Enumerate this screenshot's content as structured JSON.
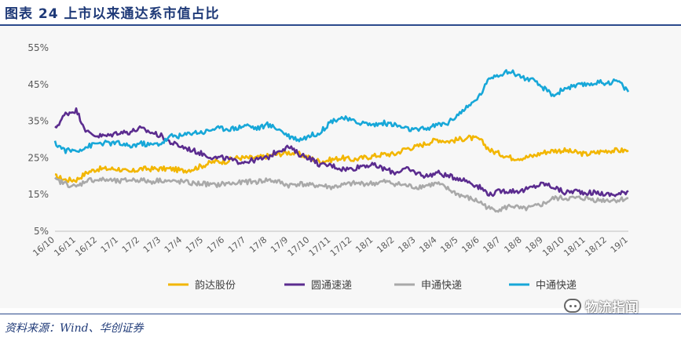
{
  "header": {
    "title": "图表 24    上市以来通达系市值占比"
  },
  "footer": {
    "source": "资料来源：Wind、华创证券"
  },
  "watermark": {
    "text": "物流指闻"
  },
  "colors": {
    "yunda": "#f2b600",
    "yuantong": "#5b2c8f",
    "shentong": "#a9a9a9",
    "zhongtong": "#17a7d8",
    "axis": "#595959",
    "title": "#1f3a78"
  },
  "chart_data": {
    "type": "line",
    "title": "上市以来通达系市值占比",
    "xlabel": "",
    "ylabel": "",
    "ylim": [
      5,
      55
    ],
    "yticks": [
      5,
      15,
      25,
      35,
      45,
      55
    ],
    "yticklabels": [
      "5%",
      "15%",
      "25%",
      "35%",
      "45%",
      "55%"
    ],
    "xlim": [
      0,
      27
    ],
    "x_ticks": [
      0,
      1,
      2,
      3,
      4,
      5,
      6,
      7,
      8,
      9,
      10,
      11,
      12,
      13,
      14,
      15,
      16,
      17,
      18,
      19,
      20,
      21,
      22,
      23,
      24,
      25,
      26,
      27
    ],
    "categories": [
      "16/10",
      "16/11",
      "16/12",
      "17/1",
      "17/2",
      "17/3",
      "17/4",
      "17/5",
      "17/6",
      "17/7",
      "17/8",
      "17/9",
      "17/10",
      "17/11",
      "17/12",
      "18/1",
      "18/2",
      "18/3",
      "18/4",
      "18/5",
      "18/6",
      "18/7",
      "18/8",
      "18/9",
      "18/10",
      "18/11",
      "18/12",
      "19/1"
    ],
    "grid": false,
    "legend_position": "bottom",
    "x": [
      0,
      0.5,
      1,
      1.5,
      2,
      2.5,
      3,
      3.5,
      4,
      4.5,
      5,
      5.5,
      6,
      6.5,
      7,
      7.5,
      8,
      8.5,
      9,
      9.5,
      10,
      10.5,
      11,
      11.5,
      12,
      12.5,
      13,
      13.5,
      14,
      14.5,
      15,
      15.5,
      16,
      16.5,
      17,
      17.5,
      18,
      18.5,
      19,
      19.5,
      20,
      20.5,
      21,
      21.5,
      22,
      22.5,
      23,
      23.5,
      24,
      24.5,
      25,
      25.5,
      26,
      26.5,
      27
    ],
    "series": [
      {
        "name": "韵达股份",
        "color": "#f2b600",
        "values": [
          20,
          19,
          19,
          21,
          22,
          22,
          22,
          21,
          22,
          22,
          22,
          22,
          21.5,
          22,
          23,
          24,
          24,
          25,
          25,
          25,
          25.5,
          26,
          26.5,
          26,
          25,
          24,
          24.5,
          25,
          24.5,
          25,
          25.5,
          26,
          26,
          27.5,
          28,
          29,
          30,
          29.5,
          30,
          30.5,
          30,
          27,
          26,
          25,
          25,
          25.5,
          26.5,
          27,
          27,
          26.5,
          26,
          26.5,
          27,
          27,
          27
        ]
      },
      {
        "name": "圆通速递",
        "color": "#5b2c8f",
        "values": [
          33,
          37,
          38,
          32,
          31,
          31,
          32,
          32,
          33,
          32,
          31,
          29,
          28,
          27,
          26,
          25,
          25,
          24,
          24,
          24.5,
          25,
          27,
          28,
          26,
          25,
          23,
          23,
          22,
          22,
          23,
          23,
          22,
          21,
          22,
          21,
          20,
          21,
          20,
          19.5,
          18.5,
          17,
          15,
          16,
          16,
          16,
          17,
          18,
          17,
          15.5,
          16,
          15.5,
          15.5,
          15,
          15,
          16
        ]
      },
      {
        "name": "申通快递",
        "color": "#a9a9a9",
        "values": [
          19,
          18,
          17,
          19,
          19,
          19,
          18.5,
          19,
          19,
          18.5,
          19,
          18.5,
          18.5,
          18,
          18,
          17.5,
          18,
          18,
          18.5,
          18.5,
          19,
          18.5,
          17.5,
          18,
          17.5,
          17.5,
          17,
          17.5,
          18,
          18,
          18,
          18.5,
          18,
          17.5,
          17,
          17.5,
          18,
          16.5,
          15,
          14,
          13,
          11,
          11,
          12,
          11,
          11.5,
          12.5,
          14,
          14,
          14,
          14,
          13.5,
          13.5,
          13.5,
          14
        ]
      },
      {
        "name": "中通快递",
        "color": "#17a7d8",
        "values": [
          29,
          27,
          27,
          28,
          29,
          29,
          29,
          28,
          29,
          28.5,
          29,
          31,
          31,
          32,
          32,
          33,
          33,
          33,
          34,
          33,
          34,
          33,
          31,
          30,
          31,
          32,
          35,
          36,
          35,
          34.5,
          34,
          34.5,
          34,
          33,
          32.5,
          33,
          34,
          34.5,
          37,
          39,
          42,
          47,
          48,
          48.5,
          47,
          46,
          44,
          42,
          44,
          44.5,
          45,
          45.5,
          45.5,
          46,
          43
        ]
      }
    ]
  }
}
